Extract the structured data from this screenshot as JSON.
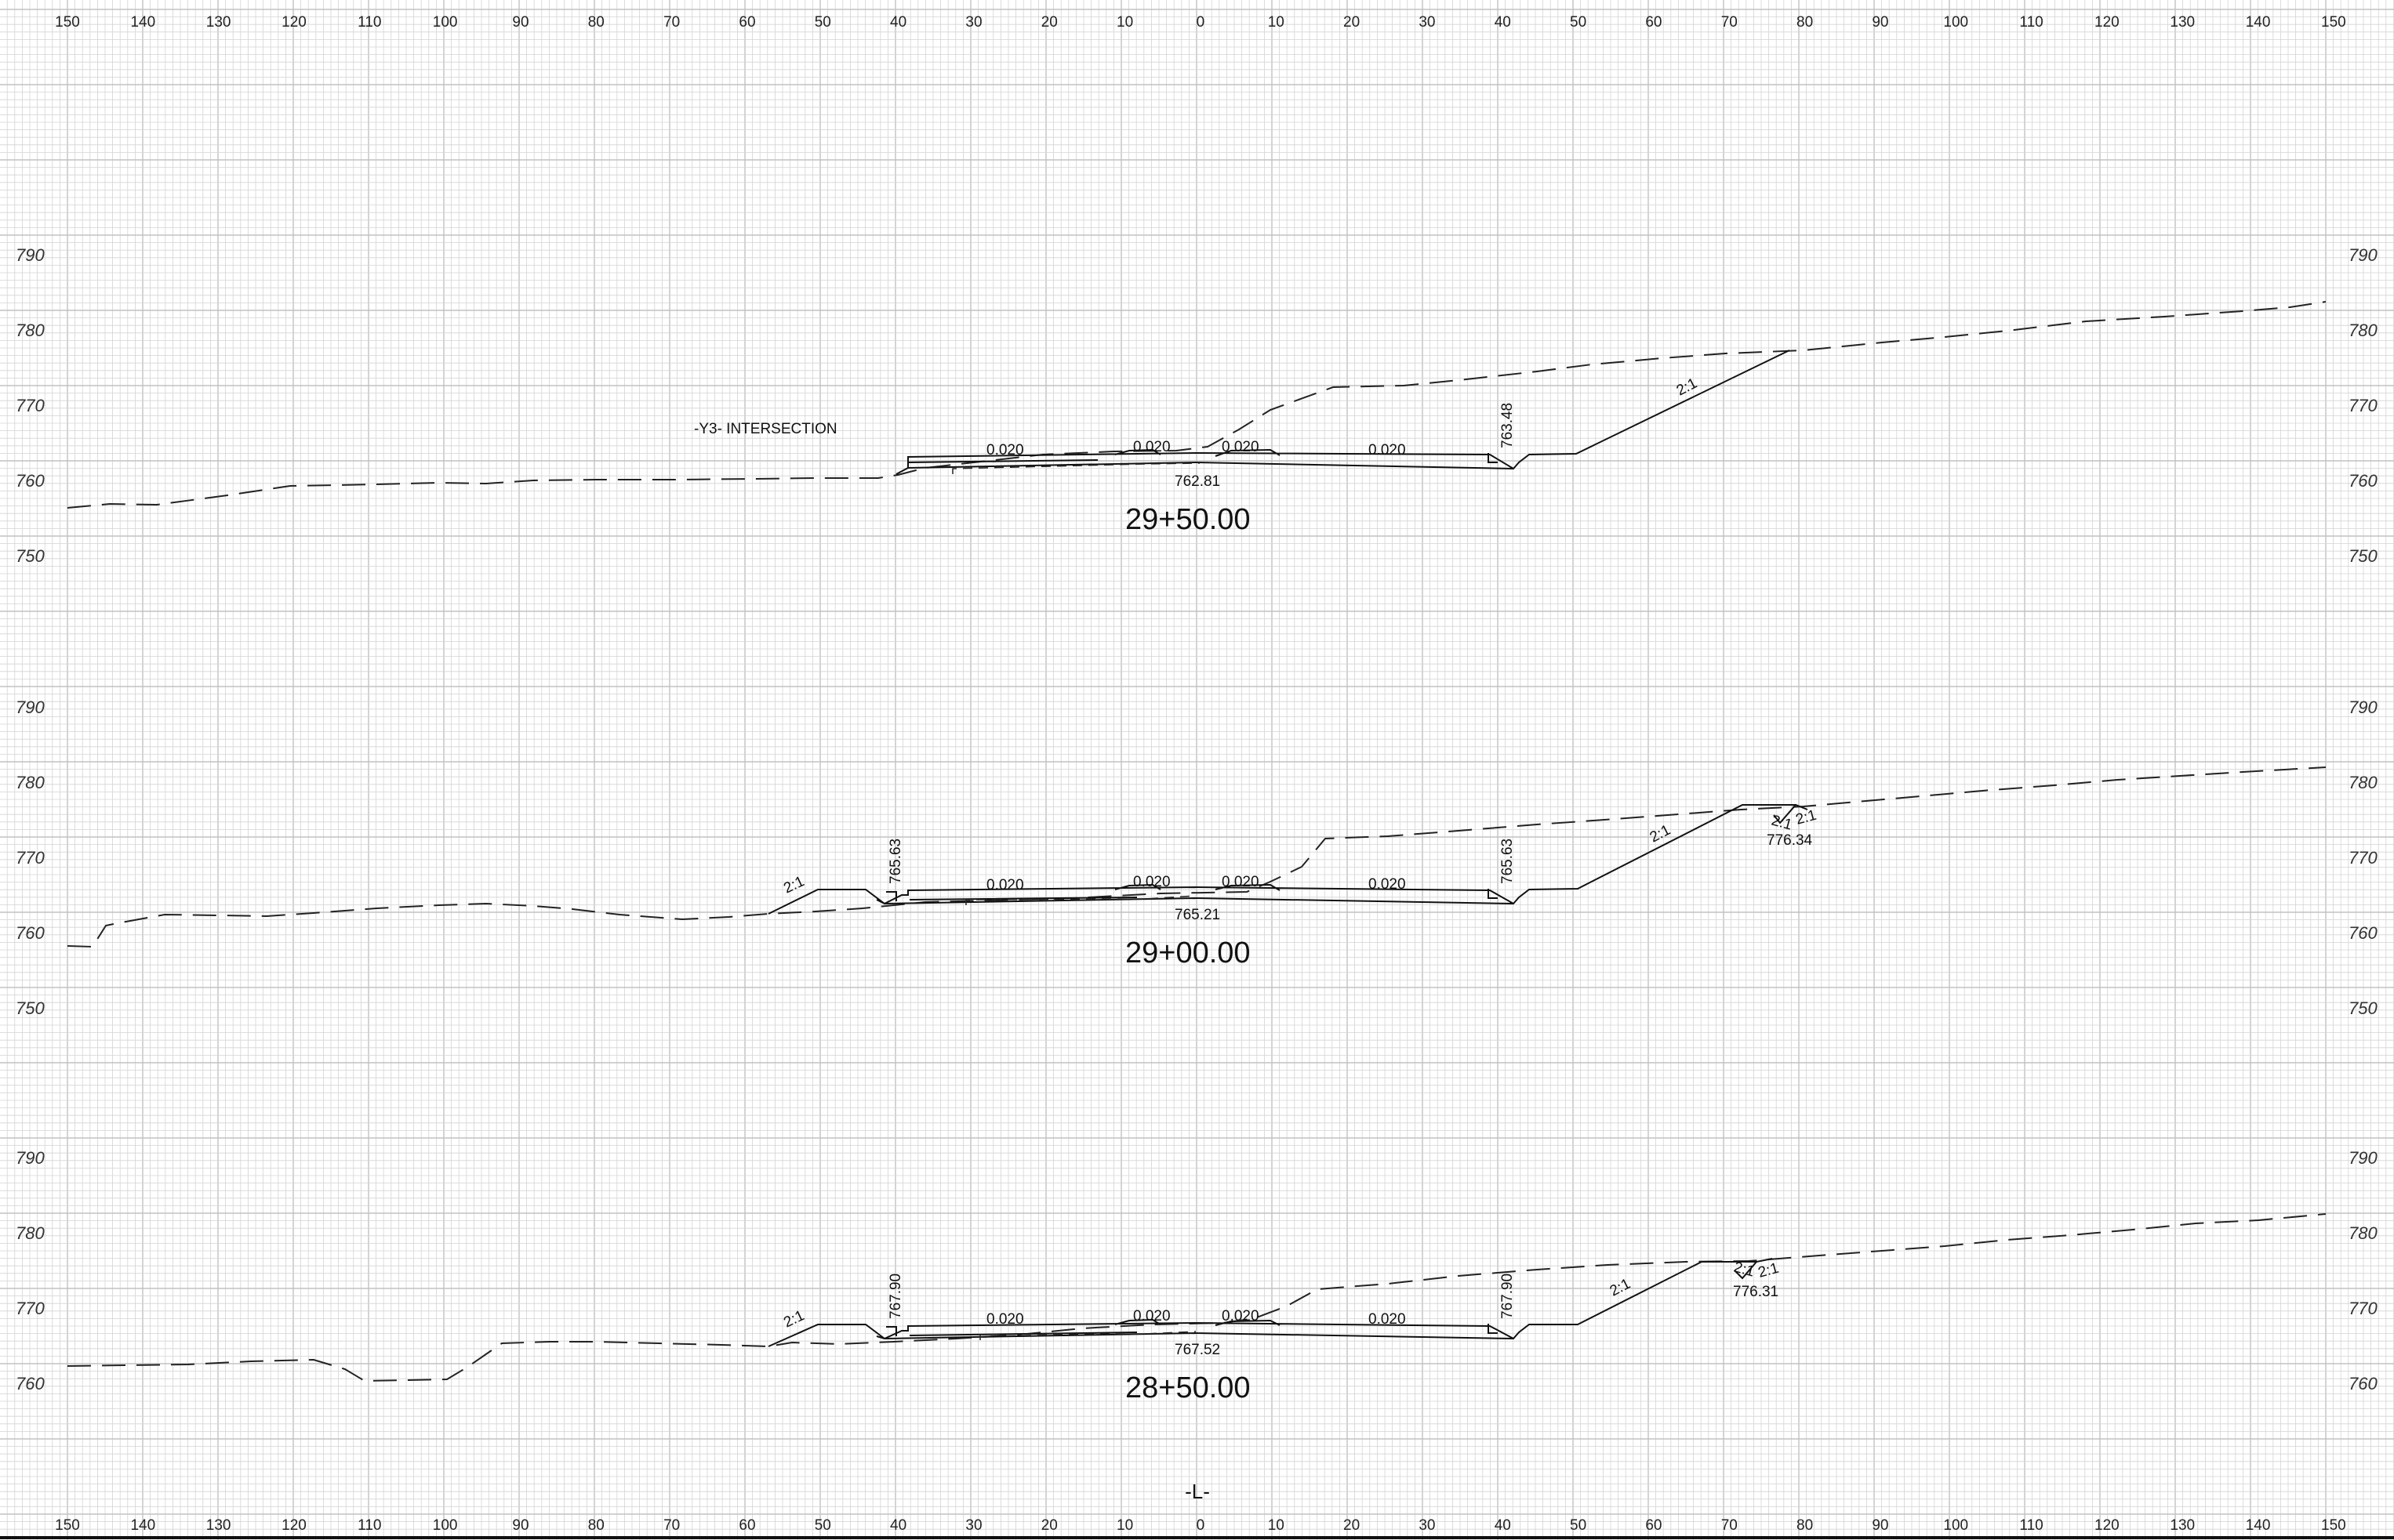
{
  "grid": {
    "offset_ticks": [
      "150",
      "140",
      "130",
      "120",
      "110",
      "100",
      "90",
      "80",
      "70",
      "60",
      "50",
      "40",
      "30",
      "20",
      "10",
      "0",
      "10",
      "20",
      "30",
      "40",
      "50",
      "60",
      "70",
      "80",
      "90",
      "100",
      "110",
      "120",
      "130",
      "140",
      "150"
    ],
    "line_color": "#d4d4d4",
    "major_line_color": "#c2c2c2"
  },
  "sections": [
    {
      "station": "29+50.00",
      "elevations": [
        "790",
        "780",
        "770",
        "760",
        "750"
      ],
      "note": "-Y3- INTERSECTION",
      "cross_slopes": [
        "0.020",
        "0.020",
        "0.020",
        "0.020"
      ],
      "cl_grade": "762.81",
      "edge_grades": [
        "763.48"
      ],
      "side_slopes": [
        "2:1"
      ],
      "catch_grade": ""
    },
    {
      "station": "29+00.00",
      "elevations": [
        "790",
        "780",
        "770",
        "760",
        "750"
      ],
      "note": "",
      "cross_slopes": [
        "0.020",
        "0.020",
        "0.020",
        "0.020"
      ],
      "cl_grade": "765.21",
      "edge_grades": [
        "765.63",
        "765.63"
      ],
      "side_slopes": [
        "2:1",
        "2:1",
        "2:1",
        "2:1"
      ],
      "catch_grade": "776.34"
    },
    {
      "station": "28+50.00",
      "elevations": [
        "790",
        "780",
        "770",
        "760"
      ],
      "note": "",
      "cross_slopes": [
        "0.020",
        "0.020",
        "0.020",
        "0.020"
      ],
      "cl_grade": "767.52",
      "edge_grades": [
        "767.90",
        "767.90"
      ],
      "side_slopes": [
        "2:1",
        "2:1",
        "2:1",
        "2:1"
      ],
      "catch_grade": "776.31"
    }
  ],
  "centerline_symbol": "-L-"
}
